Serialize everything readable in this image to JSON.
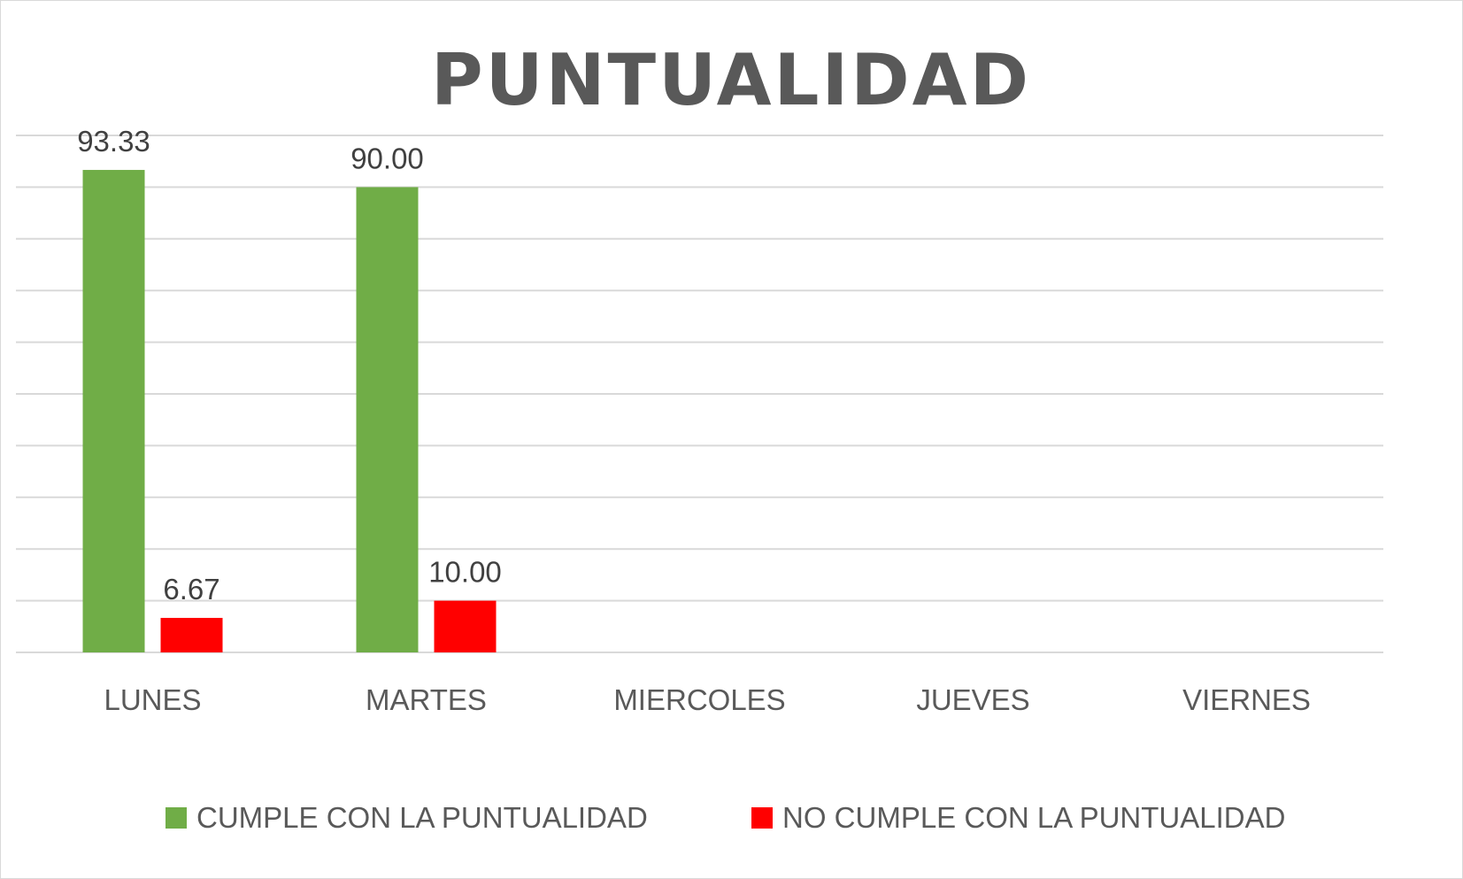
{
  "chart_data": {
    "type": "bar",
    "title": "PUNTUALIDAD",
    "categories": [
      "LUNES",
      "MARTES",
      "MIERCOLES",
      "JUEVES",
      "VIERNES"
    ],
    "series": [
      {
        "name": "CUMPLE CON LA PUNTUALIDAD",
        "color": "#70ad47",
        "values": [
          93.33,
          90.0,
          null,
          null,
          null
        ],
        "labels": [
          "93.33",
          "90.00",
          "",
          "",
          ""
        ]
      },
      {
        "name": "NO CUMPLE CON LA PUNTUALIDAD",
        "color": "#ff0000",
        "values": [
          6.67,
          10.0,
          null,
          null,
          null
        ],
        "labels": [
          "6.67",
          "10.00",
          "",
          "",
          ""
        ]
      }
    ],
    "ylim": [
      0,
      100
    ],
    "grid": true,
    "legend": "bottom"
  }
}
